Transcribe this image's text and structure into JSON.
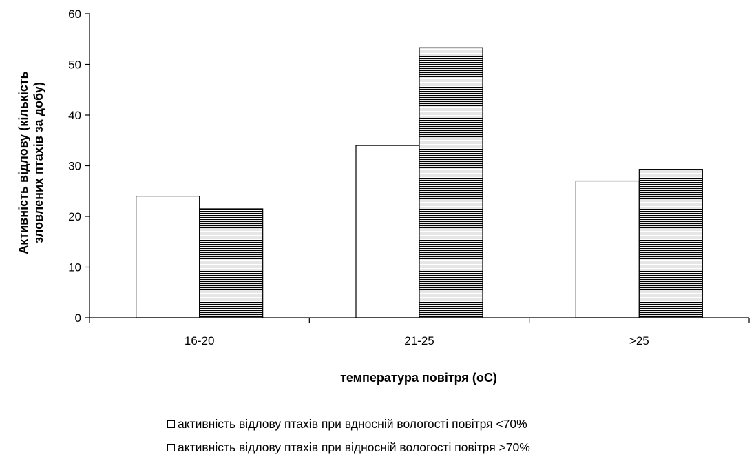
{
  "chart_data": {
    "type": "bar",
    "categories": [
      "16-20",
      "21-25",
      ">25"
    ],
    "series": [
      {
        "name": "активність відлову птахів при вдносній вологості повітря <70%",
        "values": [
          24,
          34,
          27
        ],
        "pattern": "none",
        "fill": "#ffffff"
      },
      {
        "name": "активність відлову птахів при відносній вологості повітря >70%",
        "values": [
          21.5,
          53.3,
          29.3
        ],
        "pattern": "horizontal-stripes",
        "fill": "#ffffff"
      }
    ],
    "y_ticks": [
      "0",
      "10",
      "20",
      "30",
      "40",
      "50",
      "60"
    ],
    "ylim": [
      0,
      60
    ],
    "xlabel": "температура повітря (оС)",
    "ylabel_line1": "Активність відлову (кількість",
    "ylabel_line2": "зловлених птахів за добу)",
    "title": "",
    "grid": false,
    "legend_position": "bottom"
  }
}
